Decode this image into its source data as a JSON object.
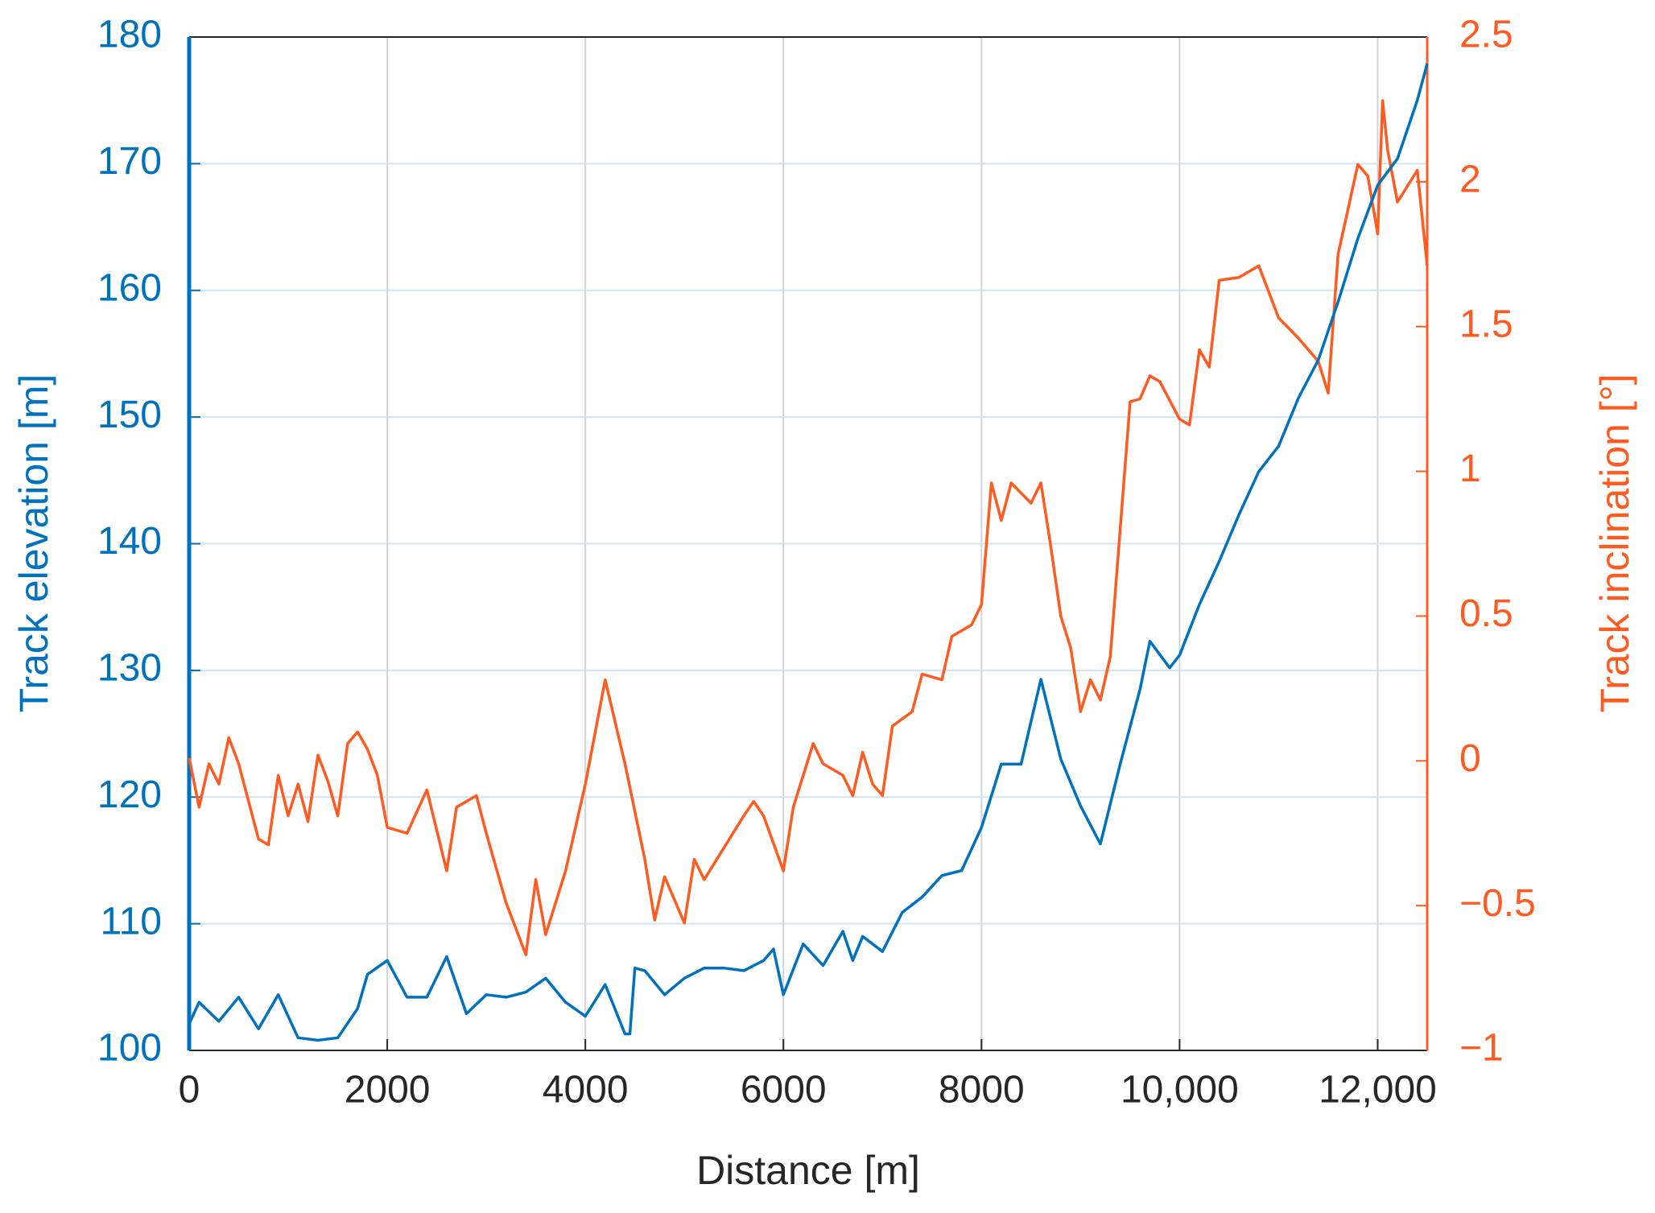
{
  "chart_data": {
    "type": "line",
    "x_label": "Distance [m]",
    "y_label": "Track elevation [m]",
    "y2_label": "Track inclination [°]",
    "xlim": [
      0,
      12500
    ],
    "xticks": [
      0,
      2000,
      4000,
      6000,
      8000,
      {
        "value": 10000,
        "label": "10,000"
      },
      {
        "value": 12000,
        "label": "12,000"
      }
    ],
    "ylim": [
      100,
      180
    ],
    "yticks": [
      100,
      110,
      120,
      130,
      140,
      150,
      160,
      170,
      180
    ],
    "y2lim": [
      -1,
      2.5
    ],
    "y2ticks": [
      {
        "value": -1,
        "label": "−1"
      },
      {
        "value": -0.5,
        "label": "−0.5"
      },
      0,
      0.5,
      1,
      1.5,
      2,
      2.5
    ],
    "grid": true,
    "series": [
      {
        "name": "Track elevation [m]",
        "color": "#0072BD",
        "axis": "y",
        "x": [
          0,
          100,
          300,
          500,
          700,
          900,
          1100,
          1300,
          1500,
          1700,
          1800,
          2000,
          2200,
          2400,
          2600,
          2800,
          3000,
          3200,
          3400,
          3600,
          3800,
          4000,
          4200,
          4400,
          4450,
          4500,
          4600,
          4800,
          5000,
          5200,
          5400,
          5600,
          5800,
          5900,
          6000,
          6200,
          6400,
          6600,
          6700,
          6800,
          7000,
          7200,
          7400,
          7600,
          7800,
          8000,
          8200,
          8400,
          8600,
          8800,
          9000,
          9200,
          9400,
          9600,
          9700,
          9900,
          10000,
          10200,
          10400,
          10600,
          10800,
          11000,
          11200,
          11400,
          11600,
          11800,
          12000,
          12200,
          12400,
          12500
        ],
        "values": [
          102.1,
          103.8,
          102.3,
          104.2,
          101.7,
          104.4,
          101.0,
          100.8,
          101.0,
          103.3,
          106.0,
          107.1,
          104.2,
          104.2,
          107.4,
          102.9,
          104.4,
          104.2,
          104.6,
          105.7,
          103.8,
          102.7,
          105.2,
          101.3,
          101.3,
          106.5,
          106.3,
          104.4,
          105.7,
          106.5,
          106.5,
          106.3,
          107.1,
          108.0,
          104.4,
          108.4,
          106.7,
          109.4,
          107.1,
          109.0,
          107.8,
          110.9,
          112.1,
          113.8,
          114.2,
          117.6,
          122.6,
          122.6,
          129.3,
          123.0,
          119.3,
          116.3,
          122.6,
          128.5,
          132.3,
          130.2,
          131.2,
          135.2,
          138.6,
          142.3,
          145.7,
          147.7,
          151.5,
          154.5,
          159.1,
          164.1,
          168.3,
          170.4,
          175.0,
          177.9
        ]
      },
      {
        "name": "Track inclination [°]",
        "color": "#FF5A1F",
        "axis": "y2",
        "x": [
          0,
          100,
          200,
          300,
          400,
          500,
          600,
          700,
          800,
          900,
          1000,
          1100,
          1200,
          1300,
          1400,
          1500,
          1600,
          1700,
          1800,
          1900,
          2000,
          2200,
          2400,
          2600,
          2700,
          2900,
          3000,
          3200,
          3400,
          3500,
          3600,
          3800,
          4000,
          4200,
          4400,
          4600,
          4700,
          4800,
          5000,
          5100,
          5200,
          5400,
          5600,
          5700,
          5800,
          6000,
          6100,
          6300,
          6400,
          6600,
          6700,
          6800,
          6900,
          7000,
          7100,
          7300,
          7400,
          7600,
          7700,
          7900,
          8000,
          8100,
          8200,
          8300,
          8500,
          8600,
          8700,
          8800,
          8900,
          9000,
          9100,
          9200,
          9300,
          9400,
          9500,
          9600,
          9700,
          9800,
          10000,
          10100,
          10200,
          10300,
          10400,
          10600,
          10800,
          11000,
          11200,
          11400,
          11500,
          11600,
          11800,
          11900,
          12000,
          12050,
          12100,
          12200,
          12400,
          12500
        ],
        "values": [
          0.01,
          -0.16,
          -0.01,
          -0.08,
          0.08,
          -0.01,
          -0.14,
          -0.27,
          -0.29,
          -0.05,
          -0.19,
          -0.08,
          -0.21,
          0.02,
          -0.07,
          -0.19,
          0.06,
          0.1,
          0.04,
          -0.05,
          -0.23,
          -0.25,
          -0.1,
          -0.38,
          -0.16,
          -0.12,
          -0.25,
          -0.49,
          -0.67,
          -0.41,
          -0.6,
          -0.38,
          -0.08,
          0.28,
          -0.01,
          -0.34,
          -0.55,
          -0.4,
          -0.56,
          -0.34,
          -0.41,
          -0.3,
          -0.19,
          -0.14,
          -0.19,
          -0.38,
          -0.16,
          0.06,
          -0.01,
          -0.05,
          -0.12,
          0.03,
          -0.08,
          -0.12,
          0.12,
          0.17,
          0.3,
          0.28,
          0.43,
          0.47,
          0.54,
          0.96,
          0.83,
          0.96,
          0.89,
          0.96,
          0.74,
          0.5,
          0.39,
          0.17,
          0.28,
          0.21,
          0.36,
          0.8,
          1.24,
          1.25,
          1.33,
          1.31,
          1.18,
          1.16,
          1.42,
          1.36,
          1.66,
          1.67,
          1.71,
          1.53,
          1.46,
          1.38,
          1.27,
          1.75,
          2.06,
          2.02,
          1.82,
          2.28,
          2.11,
          1.93,
          2.04,
          1.71
        ]
      }
    ]
  }
}
